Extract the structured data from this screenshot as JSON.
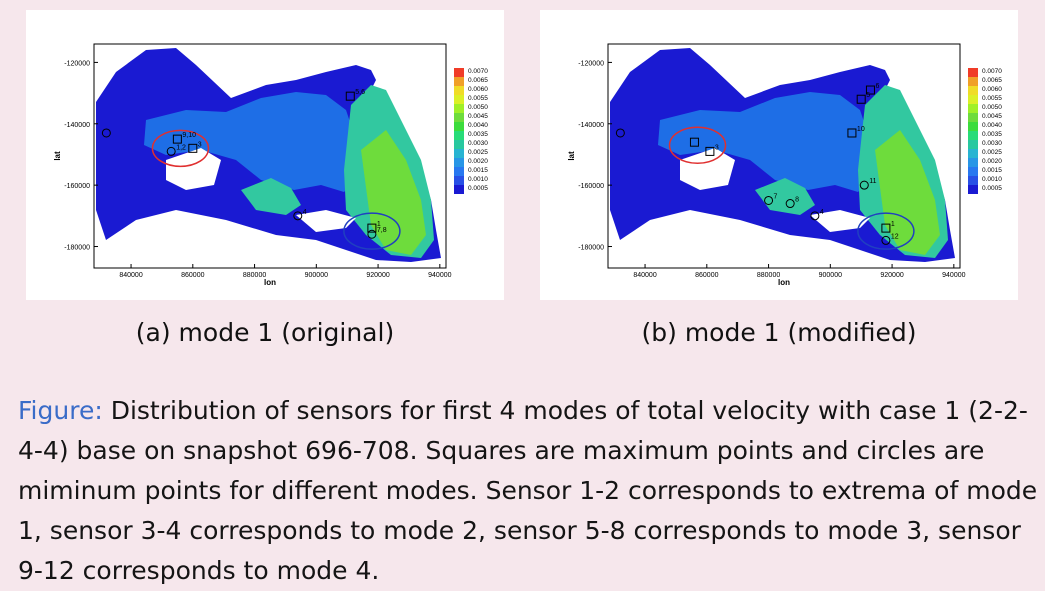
{
  "chart_data": [
    {
      "type": "heatmap",
      "subtitle": "(a) mode 1 (original)",
      "xlabel": "lon",
      "ylabel": "lat",
      "xticks": [
        "840000",
        "860000",
        "880000",
        "900000",
        "920000",
        "940000"
      ],
      "yticks": [
        "-120000",
        "-140000",
        "-160000",
        "-180000"
      ],
      "xlim": [
        828000,
        942000
      ],
      "ylim": [
        -187000,
        -114000
      ],
      "colorbar": {
        "levels": [
          "0.0070",
          "0.0065",
          "0.0060",
          "0.0055",
          "0.0050",
          "0.0045",
          "0.0040",
          "0.0035",
          "0.0030",
          "0.0025",
          "0.0020",
          "0.0015",
          "0.0010",
          "0.0005"
        ]
      },
      "sensors": [
        {
          "label": "5,6",
          "shape": "square",
          "x": 911000,
          "y": -131000
        },
        {
          "label": "9,10",
          "shape": "square",
          "x": 855000,
          "y": -145000
        },
        {
          "label": "3",
          "shape": "square",
          "x": 860000,
          "y": -148000
        },
        {
          "label": "1,2",
          "shape": "circle",
          "x": 853000,
          "y": -149000
        },
        {
          "label": "4",
          "shape": "circle",
          "x": 894000,
          "y": -170000
        },
        {
          "label": "1",
          "shape": "square",
          "x": 918000,
          "y": -174000
        },
        {
          "label": "7,8",
          "shape": "circle",
          "x": 918000,
          "y": -176000
        },
        {
          "label": "",
          "shape": "circle",
          "x": 832000,
          "y": -143000
        }
      ],
      "highlights": [
        {
          "color": "#e03030",
          "x": 856000,
          "y": -148000
        },
        {
          "color": "#2040c0",
          "x": 918000,
          "y": -175000
        }
      ]
    },
    {
      "type": "heatmap",
      "subtitle": "(b) mode 1 (modified)",
      "xlabel": "lon",
      "ylabel": "lat",
      "xticks": [
        "840000",
        "860000",
        "880000",
        "900000",
        "920000",
        "940000"
      ],
      "yticks": [
        "-120000",
        "-140000",
        "-160000",
        "-180000"
      ],
      "xlim": [
        828000,
        942000
      ],
      "ylim": [
        -187000,
        -114000
      ],
      "colorbar": {
        "levels": [
          "0.0070",
          "0.0065",
          "0.0060",
          "0.0055",
          "0.0050",
          "0.0045",
          "0.0040",
          "0.0035",
          "0.0030",
          "0.0025",
          "0.0020",
          "0.0015",
          "0.0010",
          "0.0005"
        ]
      },
      "sensors": [
        {
          "label": "5",
          "shape": "square",
          "x": 910000,
          "y": -132000
        },
        {
          "label": "6",
          "shape": "square",
          "x": 913000,
          "y": -129000
        },
        {
          "label": "10",
          "shape": "square",
          "x": 907000,
          "y": -143000
        },
        {
          "label": "3",
          "shape": "square",
          "x": 861000,
          "y": -149000
        },
        {
          "label": "",
          "shape": "square",
          "x": 856000,
          "y": -146000
        },
        {
          "label": "11",
          "shape": "circle",
          "x": 911000,
          "y": -160000
        },
        {
          "label": "7",
          "shape": "circle",
          "x": 880000,
          "y": -165000
        },
        {
          "label": "8",
          "shape": "circle",
          "x": 887000,
          "y": -166000
        },
        {
          "label": "4",
          "shape": "circle",
          "x": 895000,
          "y": -170000
        },
        {
          "label": "1",
          "shape": "square",
          "x": 918000,
          "y": -174000
        },
        {
          "label": "12",
          "shape": "circle",
          "x": 918000,
          "y": -178000
        },
        {
          "label": "",
          "shape": "circle",
          "x": 832000,
          "y": -143000
        }
      ],
      "highlights": [
        {
          "color": "#e03030",
          "x": 857000,
          "y": -147000
        },
        {
          "color": "#2040c0",
          "x": 918000,
          "y": -175000
        }
      ]
    }
  ],
  "figure_caption": {
    "label": "Figure:",
    "text": " Distribution of sensors for first 4 modes of total velocity with case 1 (2-2-4-4) base on snapshot 696-708. Squares are maximum points and circles are miminum points for different modes. Sensor 1-2 corresponds to extrema of mode 1, sensor 3-4 corresponds to mode 2, sensor 5-8 corresponds to mode 3, sensor 9-12 corresponds to mode 4."
  },
  "colors": {
    "low": "#1a1ad2",
    "mid_low": "#1e6ee6",
    "mid": "#32c8a0",
    "high": "#6edc3c",
    "top": "#f03c28",
    "red_circle": "#e03030",
    "blue_circle": "#2040c0"
  }
}
